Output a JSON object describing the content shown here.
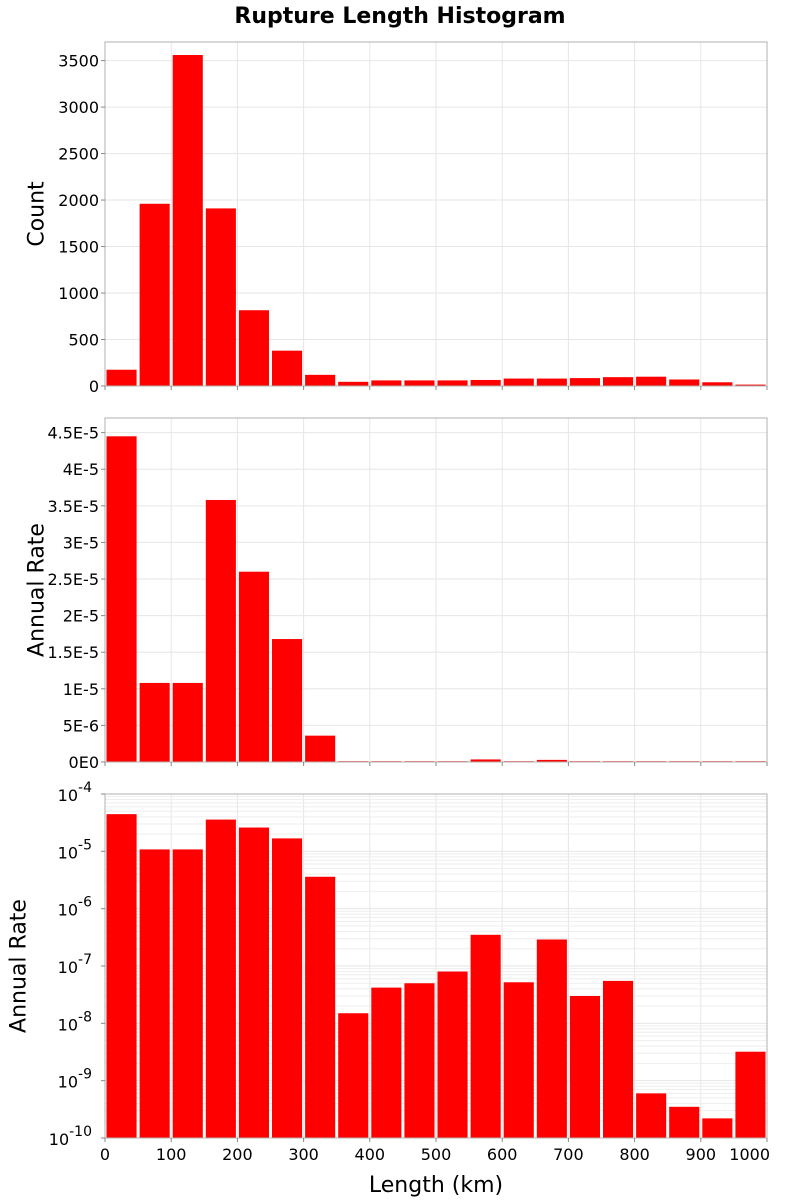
{
  "figure": {
    "title": "Rupture Length Histogram",
    "bar_color": "#ff0000",
    "grid_color": "#e6e6e6",
    "frame_color": "#b0b0b0"
  },
  "chart_data": [
    {
      "type": "bar",
      "title": "Rupture Length Histogram",
      "ylabel": "Count",
      "xlabel": "",
      "xlim": [
        0,
        1000
      ],
      "ylim": [
        0,
        3700
      ],
      "x": [
        25,
        75,
        125,
        175,
        225,
        275,
        325,
        375,
        425,
        475,
        525,
        575,
        625,
        675,
        725,
        775,
        825,
        875,
        925,
        975
      ],
      "bin_width": 50,
      "values": [
        175,
        1960,
        3560,
        1910,
        815,
        380,
        120,
        45,
        60,
        60,
        60,
        65,
        80,
        80,
        85,
        95,
        100,
        70,
        40,
        15
      ],
      "y_ticks": [
        "0",
        "500",
        "1000",
        "1500",
        "2000",
        "2500",
        "3000",
        "3500"
      ],
      "y_tick_values": [
        0,
        500,
        1000,
        1500,
        2000,
        2500,
        3000,
        3500
      ],
      "grid": true
    },
    {
      "type": "bar",
      "ylabel": "Annual Rate",
      "xlabel": "",
      "xlim": [
        0,
        1000
      ],
      "ylim": [
        0,
        4.7e-05
      ],
      "x": [
        25,
        75,
        125,
        175,
        225,
        275,
        325,
        375,
        425,
        475,
        525,
        575,
        625,
        675,
        725,
        775,
        825,
        875,
        925,
        975
      ],
      "bin_width": 50,
      "values": [
        4.45e-05,
        1.08e-05,
        1.08e-05,
        3.58e-05,
        2.6e-05,
        1.68e-05,
        3.6e-06,
        1.5e-08,
        4.2e-08,
        5e-08,
        8e-08,
        3.5e-07,
        5.2e-08,
        2.9e-07,
        3e-08,
        5.5e-08,
        6e-10,
        3.5e-10,
        2.2e-10,
        3.2e-09
      ],
      "y_ticks": [
        "0E0",
        "5E-6",
        "1E-5",
        "1.5E-5",
        "2E-5",
        "2.5E-5",
        "3E-5",
        "3.5E-5",
        "4E-5",
        "4.5E-5"
      ],
      "y_tick_values": [
        0,
        5e-06,
        1e-05,
        1.5e-05,
        2e-05,
        2.5e-05,
        3e-05,
        3.5e-05,
        4e-05,
        4.5e-05
      ],
      "grid": true
    },
    {
      "type": "bar",
      "ylabel": "Annual Rate",
      "xlabel": "Length (km)",
      "xlim": [
        0,
        1000
      ],
      "ylim": [
        1e-10,
        0.0001
      ],
      "yscale": "log",
      "x": [
        25,
        75,
        125,
        175,
        225,
        275,
        325,
        375,
        425,
        475,
        525,
        575,
        625,
        675,
        725,
        775,
        825,
        875,
        925,
        975
      ],
      "bin_width": 50,
      "values": [
        4.45e-05,
        1.08e-05,
        1.08e-05,
        3.58e-05,
        2.6e-05,
        1.68e-05,
        3.6e-06,
        1.5e-08,
        4.2e-08,
        5e-08,
        8e-08,
        3.5e-07,
        5.2e-08,
        2.9e-07,
        3e-08,
        5.5e-08,
        6e-10,
        3.5e-10,
        2.2e-10,
        3.2e-09
      ],
      "y_ticks": [
        {
          "base": "10",
          "exp": "-10"
        },
        {
          "base": "10",
          "exp": "-9"
        },
        {
          "base": "10",
          "exp": "-8"
        },
        {
          "base": "10",
          "exp": "-7"
        },
        {
          "base": "10",
          "exp": "-6"
        },
        {
          "base": "10",
          "exp": "-5"
        },
        {
          "base": "10",
          "exp": "-4"
        }
      ],
      "y_tick_values": [
        1e-10,
        1e-09,
        1e-08,
        1e-07,
        1e-06,
        1e-05,
        0.0001
      ],
      "x_ticks": [
        "0",
        "100",
        "200",
        "300",
        "400",
        "500",
        "600",
        "700",
        "800",
        "900",
        "1000"
      ],
      "x_tick_values": [
        0,
        100,
        200,
        300,
        400,
        500,
        600,
        700,
        800,
        900,
        1000
      ],
      "grid": true
    }
  ]
}
